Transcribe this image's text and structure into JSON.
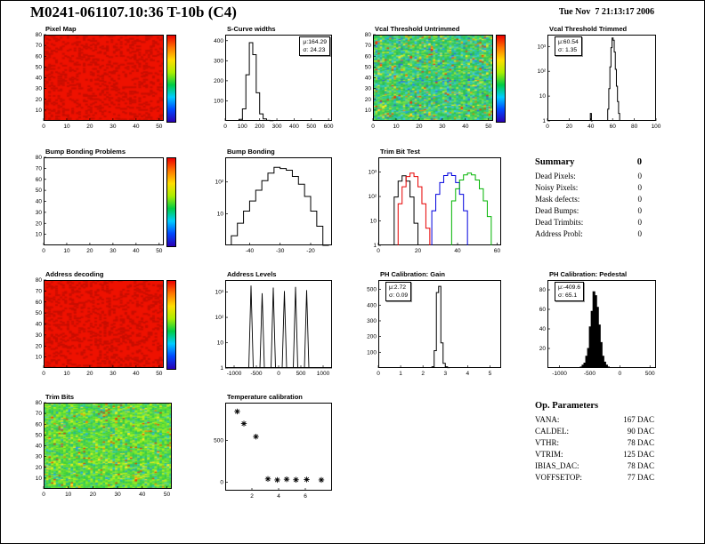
{
  "page": {
    "title": "M0241-061107.10:36 T-10b (C4)",
    "datetime": "Tue Nov  7 21:13:17 2006",
    "summary": {
      "header": "Summary",
      "header_value": "0",
      "rows": [
        {
          "label": "Dead Pixels:",
          "value": "0"
        },
        {
          "label": "Noisy Pixels:",
          "value": "0"
        },
        {
          "label": "Mask defects:",
          "value": "0"
        },
        {
          "label": "Dead Bumps:",
          "value": "0"
        },
        {
          "label": "Dead Trimbits:",
          "value": "0"
        },
        {
          "label": "Address Probl:",
          "value": "0"
        }
      ]
    },
    "op_parameters": {
      "header": "Op. Parameters",
      "rows": [
        {
          "label": "VANA:",
          "value": "167 DAC"
        },
        {
          "label": "CALDEL:",
          "value": "90 DAC"
        },
        {
          "label": "VTHR:",
          "value": "78 DAC"
        },
        {
          "label": "VTRIM:",
          "value": "125 DAC"
        },
        {
          "label": "IBIAS_DAC:",
          "value": "78 DAC"
        },
        {
          "label": "VOFFSETOP:",
          "value": "77 DAC"
        }
      ]
    },
    "colorbar_colors": [
      "#2a00b4",
      "#0048ff",
      "#00ccff",
      "#00cc44",
      "#aaee00",
      "#ffdd00",
      "#ff7700",
      "#ee0000"
    ]
  },
  "chart_data": [
    {
      "id": "pixel_map",
      "type": "heatmap",
      "title": "Pixel Map",
      "xlim": [
        0,
        52
      ],
      "ylim": [
        0,
        80
      ],
      "xticks": [
        0,
        10,
        20,
        30,
        40,
        50
      ],
      "yticks": [
        10,
        20,
        30,
        40,
        50,
        60,
        70,
        80
      ],
      "grid": [
        52,
        80
      ],
      "style": "solid",
      "base_color": "#ee1100",
      "speckle_color": "#c80e00",
      "speckle_frac": 0.2,
      "seed": 1,
      "colorbar": true
    },
    {
      "id": "s_curve_widths",
      "type": "histogram",
      "title": "S-Curve widths",
      "xlim": [
        0,
        620
      ],
      "ylim": [
        0,
        430
      ],
      "xticks": [
        0,
        100,
        200,
        300,
        400,
        500,
        600
      ],
      "yticks": [
        100,
        200,
        300,
        400
      ],
      "bin_width": 20,
      "x": [
        90,
        110,
        130,
        150,
        170,
        190,
        210,
        230,
        250,
        270
      ],
      "values": [
        8,
        60,
        230,
        390,
        330,
        140,
        35,
        10,
        3,
        1
      ],
      "fill": false,
      "stats": {
        "lines": [
          "μ:164.29",
          "σ: 24.23"
        ],
        "pos": "right"
      }
    },
    {
      "id": "vcal_untrimmed",
      "type": "heatmap",
      "title": "Vcal Threshold Untrimmed",
      "xlim": [
        0,
        52
      ],
      "ylim": [
        0,
        80
      ],
      "xticks": [
        0,
        10,
        20,
        30,
        40,
        50
      ],
      "yticks": [
        10,
        20,
        30,
        40,
        50,
        60,
        70,
        80
      ],
      "grid": [
        52,
        80
      ],
      "style": "noise",
      "seed": 3,
      "palette": [
        {
          "c": "#2fbf4f",
          "w": 22
        },
        {
          "c": "#45d25a",
          "w": 16
        },
        {
          "c": "#27c97e",
          "w": 12
        },
        {
          "c": "#30c9b0",
          "w": 9
        },
        {
          "c": "#3cc9e0",
          "w": 9
        },
        {
          "c": "#7fe040",
          "w": 10
        },
        {
          "c": "#a8e832",
          "w": 6
        },
        {
          "c": "#ffe920",
          "w": 4
        },
        {
          "c": "#22a5e0",
          "w": 5
        },
        {
          "c": "#2b62e8",
          "w": 3
        },
        {
          "c": "#ff8400",
          "w": 2
        },
        {
          "c": "#ff2a00",
          "w": 2
        }
      ],
      "colorbar": true
    },
    {
      "id": "vcal_trimmed",
      "type": "histogram",
      "title": "Vcal Threshold Trimmed",
      "xlim": [
        0,
        100
      ],
      "ylim": [
        1,
        3000
      ],
      "ylog": true,
      "xticks": [
        0,
        20,
        40,
        60,
        80,
        100
      ],
      "yticks": [
        1,
        10,
        100,
        1000
      ],
      "ytick_labels": [
        "1",
        "10",
        "10²",
        "10³"
      ],
      "bin_width": 1,
      "x": [
        40,
        41,
        56,
        57,
        58,
        59,
        60,
        61,
        62,
        63,
        64,
        65,
        66
      ],
      "values": [
        2,
        1,
        3,
        20,
        150,
        900,
        2200,
        1800,
        600,
        120,
        25,
        6,
        2
      ],
      "fill": false,
      "stats": {
        "lines": [
          "μ:60.54",
          "σ: 1.35"
        ],
        "pos": "left"
      }
    },
    {
      "id": "bump_problems",
      "type": "heatmap",
      "title": "Bump Bonding Problems",
      "xlim": [
        0,
        52
      ],
      "ylim": [
        0,
        80
      ],
      "xticks": [
        0,
        10,
        20,
        30,
        40,
        50
      ],
      "yticks": [
        10,
        20,
        30,
        40,
        50,
        60,
        70,
        80
      ],
      "grid": [
        52,
        80
      ],
      "style": "empty",
      "colorbar": true
    },
    {
      "id": "bump_bonding",
      "type": "histogram",
      "title": "Bump Bonding",
      "xlim": [
        -48,
        -13
      ],
      "ylim": [
        1,
        600
      ],
      "ylog": true,
      "xticks": [
        -40,
        -30,
        -20
      ],
      "yticks": [
        10,
        100
      ],
      "ytick_labels": [
        "10",
        "10²"
      ],
      "bin_width": 2,
      "x": [
        -45,
        -43,
        -41,
        -39,
        -37,
        -35,
        -33,
        -31,
        -29,
        -27,
        -25,
        -23,
        -21,
        -19,
        -17,
        -15
      ],
      "values": [
        2,
        5,
        12,
        25,
        55,
        110,
        190,
        290,
        265,
        235,
        150,
        85,
        35,
        12,
        4,
        1
      ],
      "fill": false
    },
    {
      "id": "trim_bit_test",
      "type": "multihistogram",
      "title": "Trim Bit Test",
      "xlim": [
        0,
        62
      ],
      "ylim": [
        1,
        4000
      ],
      "ylog": true,
      "xticks": [
        0,
        20,
        40,
        60
      ],
      "yticks": [
        1,
        10,
        100,
        1000
      ],
      "ytick_labels": [
        "1",
        "10",
        "10²",
        "10³"
      ],
      "bin_width": 2,
      "series": [
        {
          "color": "#000000",
          "x": [
            9,
            11,
            13,
            15,
            17,
            19
          ],
          "values": [
            95,
            424,
            700,
            424,
            95,
            8
          ]
        },
        {
          "color": "#e60000",
          "x": [
            11,
            13,
            15,
            17,
            19,
            21,
            23,
            25
          ],
          "values": [
            50,
            250,
            653,
            900,
            653,
            250,
            50,
            5
          ]
        },
        {
          "color": "#0000dd",
          "x": [
            28,
            30,
            32,
            34,
            36,
            38,
            40,
            42,
            44
          ],
          "values": [
            26,
            122,
            370,
            721,
            900,
            721,
            370,
            122,
            26
          ]
        },
        {
          "color": "#00b400",
          "x": [
            38,
            40,
            42,
            44,
            46,
            48,
            50,
            52,
            54,
            56
          ],
          "values": [
            66,
            207,
            470,
            766,
            900,
            766,
            470,
            207,
            66,
            15
          ]
        }
      ]
    },
    {
      "id": "address_decoding",
      "type": "heatmap",
      "title": "Address decoding",
      "xlim": [
        0,
        52
      ],
      "ylim": [
        0,
        80
      ],
      "xticks": [
        0,
        10,
        20,
        30,
        40,
        50
      ],
      "yticks": [
        10,
        20,
        30,
        40,
        50,
        60,
        70,
        80
      ],
      "grid": [
        52,
        80
      ],
      "style": "solid",
      "base_color": "#ee1100",
      "speckle_color": "#c80e00",
      "speckle_frac": 0.2,
      "seed": 2,
      "colorbar": true
    },
    {
      "id": "address_levels",
      "type": "spikes",
      "title": "Address Levels",
      "xlim": [
        -1200,
        1200
      ],
      "ylim": [
        1,
        3000
      ],
      "ylog": true,
      "xticks": [
        -1000,
        -500,
        0,
        500,
        1000
      ],
      "yticks": [
        1,
        10,
        100,
        1000
      ],
      "ytick_labels": [
        "1",
        "10",
        "10²",
        "10³"
      ],
      "baseline": 1,
      "points": [
        [
          -620,
          1800
        ],
        [
          -370,
          900
        ],
        [
          -120,
          1500
        ],
        [
          130,
          1100
        ],
        [
          380,
          1600
        ],
        [
          630,
          1200
        ]
      ]
    },
    {
      "id": "ph_gain",
      "type": "histogram",
      "title": "PH Calibration: Gain",
      "xlim": [
        0,
        5.5
      ],
      "ylim": [
        0,
        560
      ],
      "xticks": [
        0,
        1,
        2,
        3,
        4,
        5
      ],
      "yticks": [
        100,
        200,
        300,
        400,
        500
      ],
      "bin_width": 0.1,
      "x": [
        2.45,
        2.55,
        2.65,
        2.75,
        2.85,
        2.95,
        3.05,
        3.15
      ],
      "values": [
        8,
        110,
        480,
        520,
        160,
        30,
        8,
        2
      ],
      "fill": false,
      "stats": {
        "lines": [
          "μ:2.72",
          "σ: 0.09"
        ],
        "pos": "left"
      }
    },
    {
      "id": "ph_pedestal",
      "type": "histogram",
      "title": "PH Calibration: Pedestal",
      "xlim": [
        -1200,
        600
      ],
      "ylim": [
        0,
        90
      ],
      "xticks": [
        -1000,
        -500,
        0,
        500
      ],
      "yticks": [
        20,
        40,
        60,
        80
      ],
      "bin_width": 30,
      "x": [
        -640,
        -610,
        -580,
        -550,
        -520,
        -490,
        -460,
        -430,
        -400,
        -370,
        -340,
        -310,
        -280,
        -250,
        -220,
        -190
      ],
      "values": [
        1,
        3,
        5,
        12,
        20,
        42,
        58,
        78,
        74,
        62,
        44,
        26,
        12,
        6,
        3,
        1
      ],
      "fill": true,
      "stats": {
        "lines": [
          "μ:-409.6",
          "σ: 65.1"
        ],
        "pos": "left"
      }
    },
    {
      "id": "trim_bits",
      "type": "heatmap",
      "title": "Trim Bits",
      "xlim": [
        0,
        52
      ],
      "ylim": [
        0,
        80
      ],
      "xticks": [
        0,
        10,
        20,
        30,
        40,
        50
      ],
      "yticks": [
        10,
        20,
        30,
        40,
        50,
        60,
        70,
        80
      ],
      "grid": [
        52,
        80
      ],
      "style": "noise",
      "seed": 9,
      "palette": [
        {
          "c": "#3ecf3e",
          "w": 20
        },
        {
          "c": "#5cdd35",
          "w": 18
        },
        {
          "c": "#7de62c",
          "w": 14
        },
        {
          "c": "#9dee22",
          "w": 10
        },
        {
          "c": "#2ec46a",
          "w": 12
        },
        {
          "c": "#27b98a",
          "w": 6
        },
        {
          "c": "#bff215",
          "w": 6
        },
        {
          "c": "#ffe920",
          "w": 4
        },
        {
          "c": "#35c9c9",
          "w": 5
        },
        {
          "c": "#2aa0e0",
          "w": 2
        },
        {
          "c": "#ff8400",
          "w": 1
        },
        {
          "c": "#e83a00",
          "w": 2
        }
      ],
      "colorbar": false
    },
    {
      "id": "temp_cal",
      "type": "scatter",
      "title": "Temperature calibration",
      "xlim": [
        0,
        8
      ],
      "ylim": [
        -100,
        950
      ],
      "xticks": [
        2,
        4,
        6
      ],
      "yticks": [
        0,
        500
      ],
      "marker": "asterisk",
      "points": [
        [
          0.9,
          845
        ],
        [
          1.4,
          700
        ],
        [
          2.3,
          545
        ],
        [
          3.2,
          40
        ],
        [
          3.9,
          28
        ],
        [
          4.6,
          36
        ],
        [
          5.3,
          30
        ],
        [
          6.1,
          33
        ],
        [
          7.2,
          28
        ]
      ]
    }
  ]
}
